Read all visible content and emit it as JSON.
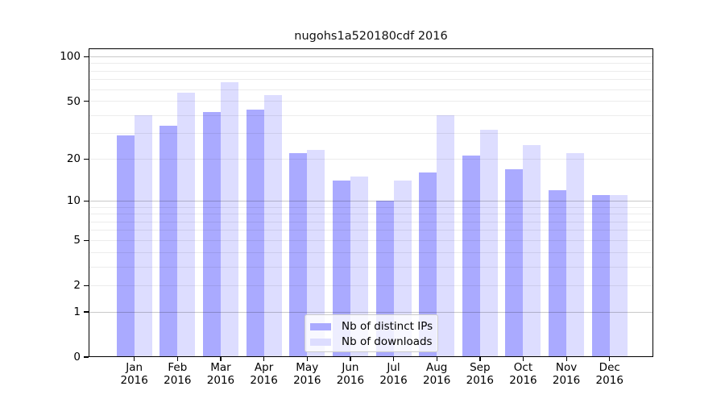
{
  "chart_data": {
    "type": "bar",
    "title": "nugohs1a520180cdf 2016",
    "categories": [
      "Jan",
      "Feb",
      "Mar",
      "Apr",
      "May",
      "Jun",
      "Jul",
      "Aug",
      "Sep",
      "Oct",
      "Nov",
      "Dec"
    ],
    "x_tick_second_line": "2016",
    "series": [
      {
        "name": "Nb of distinct IPs",
        "color": "#aaaaff",
        "values": [
          29,
          34,
          42,
          44,
          22,
          14,
          10,
          16,
          21,
          17,
          12,
          11
        ]
      },
      {
        "name": "Nb of downloads",
        "color": "#ddddff",
        "values": [
          40,
          57,
          67,
          55,
          23,
          15,
          14,
          40,
          32,
          25,
          22,
          11
        ]
      }
    ],
    "xlabel": "",
    "ylabel": "",
    "yscale": "log10(1+x)",
    "ylim": [
      0,
      114
    ],
    "yticks": [
      0,
      1,
      2,
      5,
      10,
      20,
      50,
      100
    ],
    "major_gridlines": [
      1,
      10,
      100
    ],
    "minor_gridlines": [
      2,
      3,
      4,
      5,
      6,
      7,
      8,
      9,
      20,
      30,
      40,
      50,
      60,
      70,
      80,
      90
    ],
    "grid": "on, drawn above bars",
    "legend_position": "inside lower-center"
  },
  "colors": {
    "bar_distinct_ips": "#aaaaff",
    "bar_downloads": "#ddddff",
    "grid_minor": "#ececec",
    "grid_major": "#c9c9c9",
    "axis": "#000000",
    "legend_border": "#cccccc",
    "background": "#ffffff"
  }
}
